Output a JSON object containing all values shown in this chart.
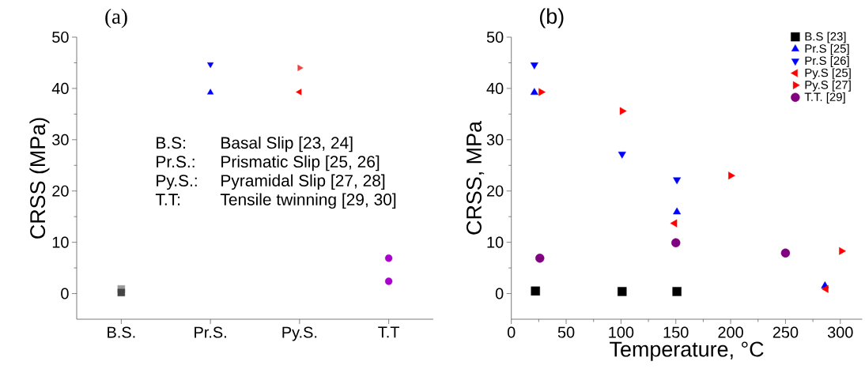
{
  "chart_data": [
    {
      "type": "scatter",
      "title": "(a)",
      "ylabel": "CRSS (MPa)",
      "categories": [
        "B.S.",
        "Pr.S.",
        "Py.S.",
        "T.T"
      ],
      "ylim": [
        -5,
        50
      ],
      "yticks": [
        0,
        10,
        20,
        30,
        40,
        50
      ],
      "legend": false,
      "annotations": [
        "B.S:",
        "Basal Slip [23, 24]",
        "Pr.S.:",
        "Prismatic Slip [25, 26]",
        "Py.S.:",
        "Pyramidal Slip [27, 28]",
        "T.T:",
        "Tensile twinning [29, 30]"
      ],
      "series": [
        {
          "color": "#999999",
          "marker": "square",
          "values": [
            0.9,
            null,
            null,
            null
          ]
        },
        {
          "color": "#444444",
          "marker": "square",
          "values": [
            0.2,
            null,
            null,
            null
          ]
        },
        {
          "color": "#0000ff",
          "marker": "triangle",
          "values": [
            null,
            39.2,
            null,
            null
          ]
        },
        {
          "color": "#0000ff",
          "marker": "triangle-down",
          "values": [
            null,
            44.7,
            null,
            null
          ]
        },
        {
          "color": "#ff0000",
          "marker": "triangle-left",
          "values": [
            null,
            null,
            39.3,
            null
          ]
        },
        {
          "color": "#ee4444",
          "marker": "triangle-right",
          "values": [
            null,
            null,
            44.0,
            null
          ]
        },
        {
          "color": "#aa00cc",
          "marker": "circle",
          "values": [
            null,
            null,
            null,
            6.9
          ]
        },
        {
          "color": "#aa00cc",
          "marker": "circle",
          "values": [
            null,
            null,
            null,
            2.4
          ]
        }
      ]
    },
    {
      "type": "scatter",
      "title": "(b)",
      "xlabel": "Temperature, °C",
      "ylabel": "CRSS, MPa",
      "xlim": [
        0,
        320
      ],
      "xticks": [
        0,
        50,
        100,
        150,
        200,
        250,
        300
      ],
      "ylim": [
        -5,
        50
      ],
      "yticks": [
        0,
        10,
        20,
        30,
        40,
        50
      ],
      "legend": "top right",
      "series": [
        {
          "name": "B.S [23]",
          "color": "#000000",
          "marker": "square",
          "x": [
            22,
            101,
            151
          ],
          "values": [
            0.5,
            0.4,
            0.4
          ]
        },
        {
          "name": "Pr.S [25]",
          "color": "#0000ff",
          "marker": "triangle",
          "x": [
            21,
            151,
            286
          ],
          "values": [
            39.2,
            15.9,
            1.5
          ]
        },
        {
          "name": "Pr.S [26]",
          "color": "#0000ff",
          "marker": "triangle-down",
          "x": [
            21,
            101,
            151
          ],
          "values": [
            44.6,
            27.2,
            22.2
          ]
        },
        {
          "name": "Py.S [25]",
          "color": "#ff0000",
          "marker": "triangle-left",
          "x": [
            149,
            287
          ],
          "values": [
            13.7,
            0.9
          ]
        },
        {
          "name": "Py.S [27]",
          "color": "#ff0000",
          "marker": "triangle-right",
          "x": [
            27,
            101,
            200,
            301
          ],
          "values": [
            39.3,
            35.6,
            23.0,
            8.3
          ]
        },
        {
          "name": "T.T. [29]",
          "color": "#800080",
          "marker": "circle",
          "x": [
            26,
            150,
            250
          ],
          "values": [
            6.9,
            9.9,
            7.9
          ]
        }
      ]
    }
  ]
}
